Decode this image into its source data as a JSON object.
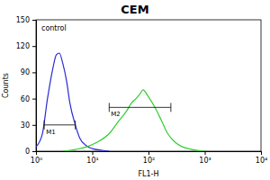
{
  "chart_data": {
    "type": "line",
    "title": "CEM",
    "x_label": "FL1-H",
    "y_label": "Counts",
    "log": "x",
    "xlim": [
      1,
      10000
    ],
    "xticks": [
      {
        "value": 1,
        "label": "10⁰"
      },
      {
        "value": 10,
        "label": "10¹"
      },
      {
        "value": 100,
        "label": "10²"
      },
      {
        "value": 1000,
        "label": "10³"
      },
      {
        "value": 10000,
        "label": "10⁴"
      }
    ],
    "ylim": [
      0,
      150
    ],
    "yticks": [
      0,
      30,
      60,
      90,
      120,
      150
    ],
    "series": [
      {
        "name": "control",
        "color": "#2b2bd6",
        "x": [
          1,
          1.3,
          1.6,
          2,
          2.3,
          2.6,
          3,
          3.5,
          4,
          5,
          6,
          8,
          10,
          15,
          20
        ],
        "values": [
          5,
          20,
          60,
          95,
          110,
          112,
          100,
          80,
          55,
          30,
          15,
          6,
          3,
          1,
          0
        ]
      },
      {
        "color": "#33cc33",
        "x": [
          3,
          5,
          8,
          12,
          20,
          30,
          40,
          50,
          60,
          70,
          80,
          100,
          130,
          170,
          220,
          300,
          400,
          600,
          1000
        ],
        "values": [
          0,
          2,
          5,
          10,
          20,
          35,
          45,
          55,
          60,
          65,
          70,
          62,
          50,
          35,
          20,
          10,
          5,
          2,
          0
        ]
      }
    ],
    "gates": [
      {
        "label": "M1",
        "x": [
          1.4,
          5
        ],
        "y": 30
      },
      {
        "label": "M2",
        "x": [
          20,
          250
        ],
        "y": 50
      }
    ]
  }
}
